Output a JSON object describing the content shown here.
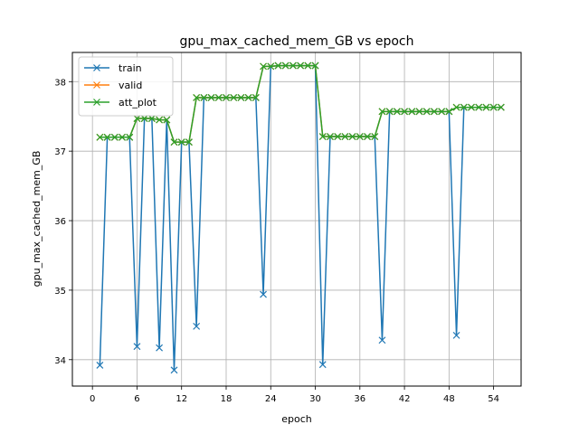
{
  "chart_data": {
    "type": "line",
    "title": "gpu_max_cached_mem_GB vs epoch",
    "xlabel": "epoch",
    "ylabel": "gpu_max_cached_mem_GB",
    "xlim": [
      -2.7,
      57.7
    ],
    "ylim": [
      33.62,
      38.42
    ],
    "xticks": [
      0,
      6,
      12,
      18,
      24,
      30,
      36,
      42,
      48,
      54
    ],
    "yticks": [
      34,
      35,
      36,
      37,
      38
    ],
    "grid": true,
    "legend_position": "top-left",
    "marker": "x",
    "series": [
      {
        "name": "train",
        "color": "#1f77b4",
        "x": [
          1,
          2,
          3,
          4,
          5,
          6,
          7,
          8,
          9,
          10,
          11,
          12,
          13,
          14,
          15,
          16,
          17,
          18,
          19,
          20,
          21,
          22,
          23,
          24,
          25,
          26,
          27,
          28,
          29,
          30,
          31,
          32,
          33,
          34,
          35,
          36,
          37,
          38,
          39,
          40,
          41,
          42,
          43,
          44,
          45,
          46,
          47,
          48,
          49,
          50,
          51,
          52,
          53,
          54,
          55
        ],
        "y": [
          33.92,
          37.2,
          37.2,
          37.2,
          37.2,
          34.19,
          37.47,
          37.47,
          34.17,
          37.45,
          33.85,
          37.13,
          37.13,
          34.48,
          37.77,
          37.77,
          37.77,
          37.77,
          37.77,
          37.77,
          37.77,
          37.77,
          34.94,
          38.22,
          38.23,
          38.23,
          38.23,
          38.23,
          38.23,
          38.23,
          33.93,
          37.21,
          37.21,
          37.21,
          37.21,
          37.21,
          37.21,
          37.21,
          34.28,
          37.57,
          37.57,
          37.57,
          37.57,
          37.57,
          37.57,
          37.57,
          37.57,
          37.57,
          34.35,
          37.63,
          37.63,
          37.63,
          37.63,
          37.63,
          37.63
        ]
      },
      {
        "name": "valid",
        "color": "#ff7f0e",
        "x": [
          1,
          2,
          3,
          4,
          5,
          6,
          7,
          8,
          9,
          10,
          11,
          12,
          13,
          14,
          15,
          16,
          17,
          18,
          19,
          20,
          21,
          22,
          23,
          24,
          25,
          26,
          27,
          28,
          29,
          30,
          31,
          32,
          33,
          34,
          35,
          36,
          37,
          38,
          39,
          40,
          41,
          42,
          43,
          44,
          45,
          46,
          47,
          48,
          49,
          50,
          51,
          52,
          53,
          54,
          55
        ],
        "y": [
          37.2,
          37.2,
          37.2,
          37.2,
          37.2,
          37.47,
          37.47,
          37.47,
          37.45,
          37.45,
          37.13,
          37.13,
          37.13,
          37.77,
          37.77,
          37.77,
          37.77,
          37.77,
          37.77,
          37.77,
          37.77,
          37.77,
          38.22,
          38.22,
          38.23,
          38.23,
          38.23,
          38.23,
          38.23,
          38.23,
          37.21,
          37.21,
          37.21,
          37.21,
          37.21,
          37.21,
          37.21,
          37.21,
          37.57,
          37.57,
          37.57,
          37.57,
          37.57,
          37.57,
          37.57,
          37.57,
          37.57,
          37.57,
          37.63,
          37.63,
          37.63,
          37.63,
          37.63,
          37.63,
          37.63
        ]
      },
      {
        "name": "att_plot",
        "color": "#2ca02c",
        "x": [
          1,
          2,
          3,
          4,
          5,
          6,
          7,
          8,
          9,
          10,
          11,
          12,
          13,
          14,
          15,
          16,
          17,
          18,
          19,
          20,
          21,
          22,
          23,
          24,
          25,
          26,
          27,
          28,
          29,
          30,
          31,
          32,
          33,
          34,
          35,
          36,
          37,
          38,
          39,
          40,
          41,
          42,
          43,
          44,
          45,
          46,
          47,
          48,
          49,
          50,
          51,
          52,
          53,
          54,
          55
        ],
        "y": [
          37.2,
          37.2,
          37.2,
          37.2,
          37.2,
          37.47,
          37.47,
          37.47,
          37.45,
          37.45,
          37.13,
          37.13,
          37.13,
          37.77,
          37.77,
          37.77,
          37.77,
          37.77,
          37.77,
          37.77,
          37.77,
          37.77,
          38.22,
          38.22,
          38.23,
          38.23,
          38.23,
          38.23,
          38.23,
          38.23,
          37.21,
          37.21,
          37.21,
          37.21,
          37.21,
          37.21,
          37.21,
          37.21,
          37.57,
          37.57,
          37.57,
          37.57,
          37.57,
          37.57,
          37.57,
          37.57,
          37.57,
          37.57,
          37.63,
          37.63,
          37.63,
          37.63,
          37.63,
          37.63,
          37.63
        ]
      }
    ]
  }
}
